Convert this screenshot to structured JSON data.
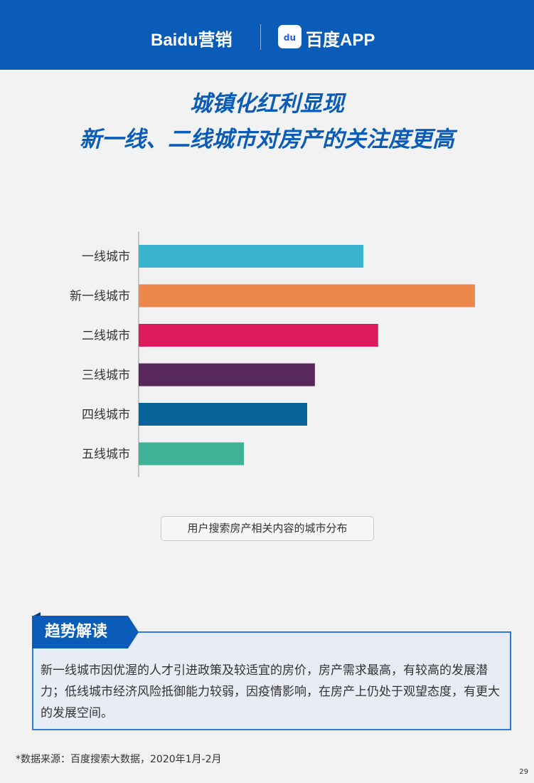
{
  "header": {
    "brand_left": "Baidu营销",
    "brand_right": "百度APP",
    "app_icon_text": "du"
  },
  "title": {
    "line1": "城镇化红利显现",
    "line2": "新一线、二线城市对房产的关注度更高"
  },
  "chart_data": {
    "type": "bar",
    "orientation": "horizontal",
    "categories": [
      "一线城市",
      "新一线城市",
      "二线城市",
      "三线城市",
      "四线城市",
      "五线城市"
    ],
    "values": [
      66.8,
      100,
      71.2,
      52.4,
      50.1,
      31.3
    ],
    "colors": [
      "#3ab3cf",
      "#ec874d",
      "#dc1a5c",
      "#58275b",
      "#07659c",
      "#3fb196"
    ],
    "xlim": [
      0,
      100
    ],
    "grid": false,
    "caption": "用户搜索房产相关内容的城市分布"
  },
  "insight": {
    "label": "趋势解读",
    "text": "新一线城市因优渥的人才引进政策及较适宜的房价，房产需求最高，有较高的发展潜力；低线城市经济风险抵御能力较弱，因疫情影响，在房产上仍处于观望态度，有更大的发展空间。"
  },
  "footnote": "*数据来源：百度搜索大数据，2020年1月-2月",
  "page_number": "29"
}
